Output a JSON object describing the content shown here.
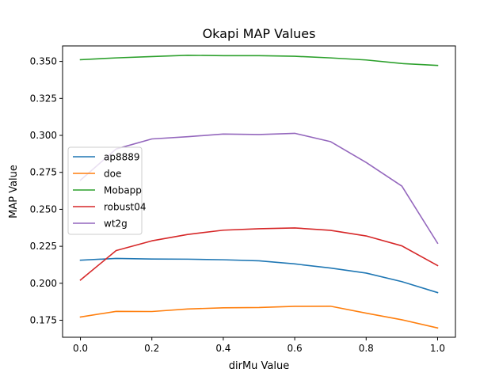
{
  "chart_data": {
    "type": "line",
    "title": "Okapi MAP Values",
    "xlabel": "dirMu Value",
    "ylabel": "MAP Value",
    "xlim": [
      -0.05,
      1.05
    ],
    "ylim": [
      0.1635,
      0.3605
    ],
    "xticks": [
      0.0,
      0.2,
      0.4,
      0.6,
      0.8,
      1.0
    ],
    "xtick_labels": [
      "0.0",
      "0.2",
      "0.4",
      "0.6",
      "0.8",
      "1.0"
    ],
    "yticks": [
      0.175,
      0.2,
      0.225,
      0.25,
      0.275,
      0.3,
      0.325,
      0.35
    ],
    "ytick_labels": [
      "0.175",
      "0.200",
      "0.225",
      "0.250",
      "0.275",
      "0.300",
      "0.325",
      "0.350"
    ],
    "grid": false,
    "legend_position": "center-left",
    "x": [
      0.0,
      0.1,
      0.2,
      0.3,
      0.4,
      0.5,
      0.6,
      0.7,
      0.8,
      0.9,
      1.0
    ],
    "series": [
      {
        "name": "ap8889",
        "color": "#1f77b4",
        "values": [
          0.2156,
          0.2168,
          0.2164,
          0.2163,
          0.2159,
          0.2152,
          0.2131,
          0.2103,
          0.2069,
          0.2011,
          0.1937
        ]
      },
      {
        "name": "doe",
        "color": "#ff7f0e",
        "values": [
          0.1772,
          0.181,
          0.1809,
          0.1826,
          0.1834,
          0.1836,
          0.1844,
          0.1845,
          0.1798,
          0.1753,
          0.1698
        ]
      },
      {
        "name": "Mobapp",
        "color": "#2ca02c",
        "values": [
          0.3512,
          0.3524,
          0.3533,
          0.3542,
          0.3539,
          0.3539,
          0.3535,
          0.3524,
          0.351,
          0.3486,
          0.3473
        ]
      },
      {
        "name": "robust04",
        "color": "#d62728",
        "values": [
          0.2022,
          0.2221,
          0.2287,
          0.233,
          0.2359,
          0.2369,
          0.2374,
          0.2358,
          0.232,
          0.2253,
          0.212
        ]
      },
      {
        "name": "wt2g",
        "color": "#9467bd",
        "values": [
          0.2697,
          0.2908,
          0.2976,
          0.2991,
          0.3009,
          0.3006,
          0.3014,
          0.2958,
          0.2817,
          0.2657,
          0.2271
        ]
      }
    ]
  }
}
